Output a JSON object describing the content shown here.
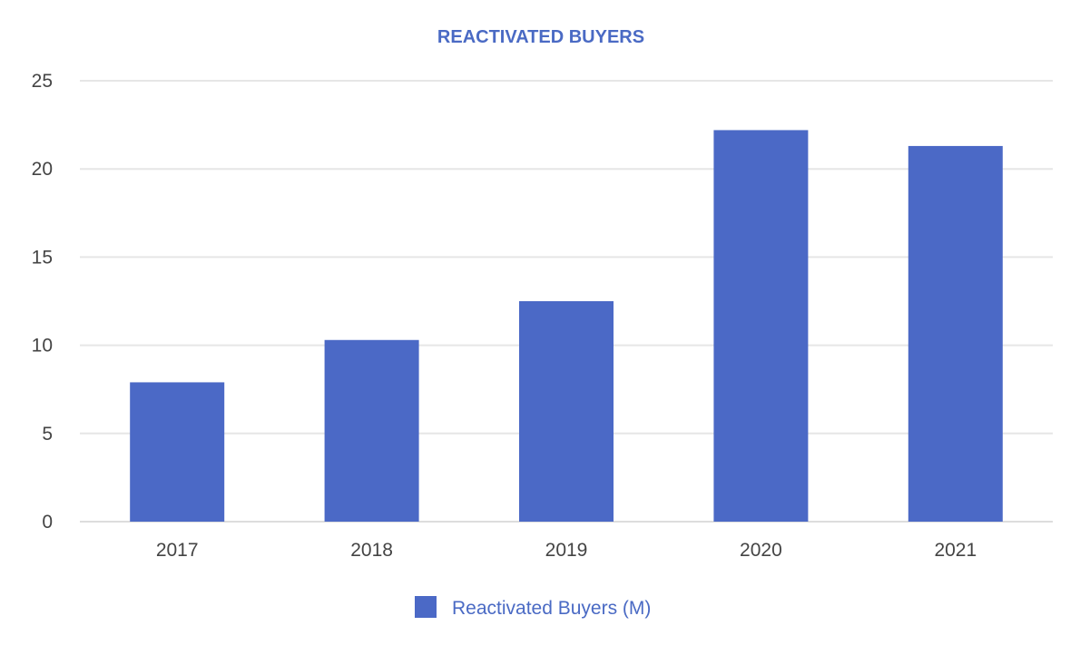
{
  "chart_data": {
    "type": "bar",
    "title": "REACTIVATED BUYERS",
    "categories": [
      "2017",
      "2018",
      "2019",
      "2020",
      "2021"
    ],
    "series": [
      {
        "name": "Reactivated Buyers (M)",
        "values": [
          7.9,
          10.3,
          12.5,
          22.2,
          21.3
        ]
      }
    ],
    "xlabel": "",
    "ylabel": "",
    "ylim": [
      0,
      25
    ],
    "yticks": [
      "0",
      "5",
      "10",
      "15",
      "20",
      "25"
    ],
    "ytick_values": [
      0,
      5,
      10,
      15,
      20,
      25
    ],
    "grid": true,
    "legend_position": "bottom-center"
  },
  "colors": {
    "bar": "#4b69c6",
    "title": "#4a6ac4",
    "grid": "#e6e6e6"
  }
}
